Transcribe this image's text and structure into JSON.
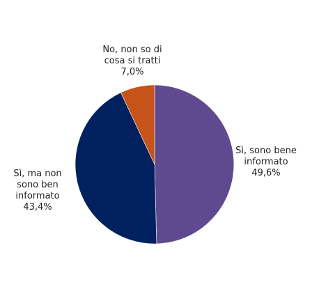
{
  "chart_data": {
    "type": "pie",
    "title": "",
    "slices": [
      {
        "label_lines": [
          "Sì, sono bene",
          "informato"
        ],
        "value": 49.6,
        "value_label": "49,6%",
        "color": "#604A8F"
      },
      {
        "label_lines": [
          "Sì, ma non",
          "sono ben",
          "informato"
        ],
        "value": 43.4,
        "value_label": "43,4%",
        "color": "#00215E"
      },
      {
        "label_lines": [
          "No, non so di",
          "cosa si tratti"
        ],
        "value": 7.0,
        "value_label": "7,0%",
        "color": "#C5531A"
      }
    ],
    "legend": "none",
    "data_labels": "outside"
  }
}
